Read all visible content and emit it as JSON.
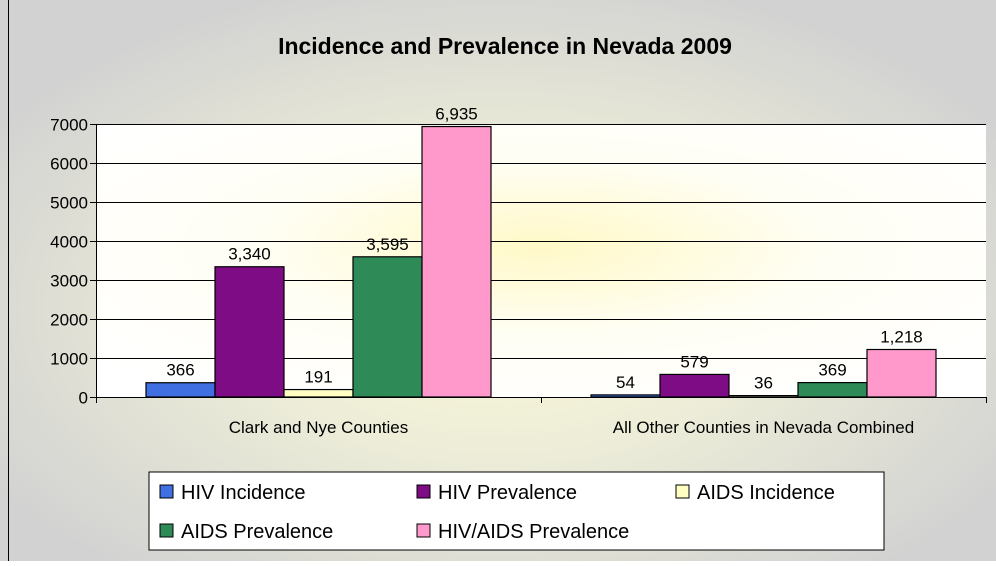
{
  "chart_data": {
    "type": "bar",
    "title": "Incidence and Prevalence in Nevada 2009",
    "xlabel": "",
    "ylabel": "",
    "ylim": [
      0,
      7000
    ],
    "yticks": [
      0,
      1000,
      2000,
      3000,
      4000,
      5000,
      6000,
      7000
    ],
    "ytick_labels": [
      "0",
      "1000",
      "2000",
      "3000",
      "4000",
      "5000",
      "6000",
      "7000"
    ],
    "grid": true,
    "legend_position": "bottom",
    "categories": [
      "Clark and Nye Counties",
      "All Other Counties in Nevada Combined"
    ],
    "series": [
      {
        "name": "HIV Incidence",
        "values": [
          366,
          54
        ],
        "labels": [
          "366",
          "54"
        ],
        "color": "#3f6fe0"
      },
      {
        "name": "HIV Prevalence",
        "values": [
          3340,
          579
        ],
        "labels": [
          "3,340",
          "579"
        ],
        "color": "#7e0c84"
      },
      {
        "name": "AIDS Incidence",
        "values": [
          191,
          36
        ],
        "labels": [
          "191",
          "36"
        ],
        "color": "#ffffc2"
      },
      {
        "name": "AIDS Prevalence",
        "values": [
          3595,
          369
        ],
        "labels": [
          "3,595",
          "369"
        ],
        "color": "#2e8b57"
      },
      {
        "name": "HIV/AIDS Prevalence",
        "values": [
          6935,
          1218
        ],
        "labels": [
          "6,935",
          "1,218"
        ],
        "color": "#ff99cc"
      }
    ]
  },
  "colors": {
    "background": "#d3d3d3",
    "plot_area": "#ffffff",
    "axis": "#000000"
  }
}
